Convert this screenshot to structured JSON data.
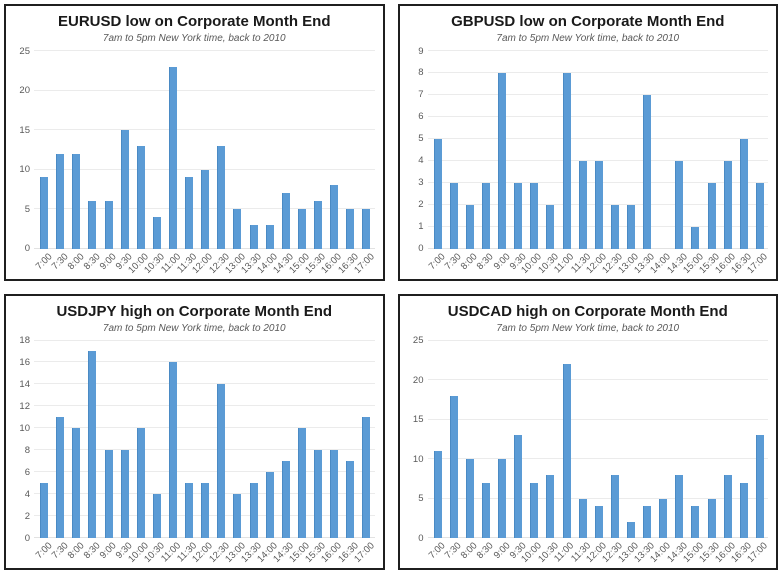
{
  "colors": {
    "bar": "#5b9bd5",
    "bar_edge": "#4a8ac4",
    "gridline": "#ebebeb",
    "axis_text": "#595959",
    "title_text": "#1a1a1a",
    "panel_border": "#1f1f1f"
  },
  "chart_data": [
    {
      "type": "bar",
      "title": "EURUSD low on Corporate Month End",
      "subtitle": "7am to 5pm New York time, back to 2010",
      "categories": [
        "7:00",
        "7:30",
        "8:00",
        "8:30",
        "9:00",
        "9:30",
        "10:00",
        "10:30",
        "11:00",
        "11:30",
        "12:00",
        "12:30",
        "13:00",
        "13:30",
        "14:00",
        "14:30",
        "15:00",
        "15:30",
        "16:00",
        "16:30",
        "17:00"
      ],
      "values": [
        9,
        12,
        12,
        6,
        6,
        15,
        13,
        4,
        23,
        9,
        10,
        13,
        5,
        3,
        3,
        7,
        5,
        6,
        8,
        5,
        5
      ],
      "xlabel": "",
      "ylabel": "",
      "ylim": [
        0,
        25
      ],
      "ytick_step": 5,
      "grid": true,
      "legend": null
    },
    {
      "type": "bar",
      "title": "GBPUSD low on Corporate Month End",
      "subtitle": "7am to 5pm New York time, back to 2010",
      "categories": [
        "7:00",
        "7:30",
        "8:00",
        "8:30",
        "9:00",
        "9:30",
        "10:00",
        "10:30",
        "11:00",
        "11:30",
        "12:00",
        "12:30",
        "13:00",
        "13:30",
        "14:00",
        "14:30",
        "15:00",
        "15:30",
        "16:00",
        "16:30",
        "17:00"
      ],
      "values": [
        5,
        3,
        2,
        3,
        8,
        3,
        3,
        2,
        8,
        4,
        4,
        2,
        2,
        7,
        0,
        4,
        1,
        3,
        4,
        5,
        3
      ],
      "xlabel": "",
      "ylabel": "",
      "ylim": [
        0,
        9
      ],
      "ytick_step": 1,
      "grid": true,
      "legend": null
    },
    {
      "type": "bar",
      "title": "USDJPY high on Corporate Month End",
      "subtitle": "7am to 5pm New York time, back to 2010",
      "categories": [
        "7:00",
        "7:30",
        "8:00",
        "8:30",
        "9:00",
        "9:30",
        "10:00",
        "10:30",
        "11:00",
        "11:30",
        "12:00",
        "12:30",
        "13:00",
        "13:30",
        "14:00",
        "14:30",
        "15:00",
        "15:30",
        "16:00",
        "16:30",
        "17:00"
      ],
      "values": [
        5,
        11,
        10,
        17,
        8,
        8,
        10,
        4,
        16,
        5,
        5,
        14,
        4,
        5,
        6,
        7,
        10,
        8,
        8,
        7,
        11
      ],
      "xlabel": "",
      "ylabel": "",
      "ylim": [
        0,
        18
      ],
      "ytick_step": 2,
      "grid": true,
      "legend": null
    },
    {
      "type": "bar",
      "title": "USDCAD high on Corporate Month End",
      "subtitle": "7am to 5pm New York time, back to 2010",
      "categories": [
        "7:00",
        "7:30",
        "8:00",
        "8:30",
        "9:00",
        "9:30",
        "10:00",
        "10:30",
        "11:00",
        "11:30",
        "12:00",
        "12:30",
        "13:00",
        "13:30",
        "14:00",
        "14:30",
        "15:00",
        "15:30",
        "16:00",
        "16:30",
        "17:00"
      ],
      "values": [
        11,
        18,
        10,
        7,
        10,
        13,
        7,
        8,
        22,
        5,
        4,
        8,
        2,
        4,
        5,
        8,
        4,
        5,
        8,
        7,
        13
      ],
      "xlabel": "",
      "ylabel": "",
      "ylim": [
        0,
        25
      ],
      "ytick_step": 5,
      "grid": true,
      "legend": null
    }
  ]
}
